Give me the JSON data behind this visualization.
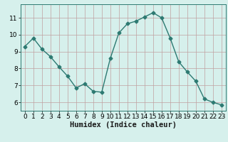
{
  "x": [
    0,
    1,
    2,
    3,
    4,
    5,
    6,
    7,
    8,
    9,
    10,
    11,
    12,
    13,
    14,
    15,
    16,
    17,
    18,
    19,
    20,
    21,
    22,
    23
  ],
  "y": [
    9.3,
    9.8,
    9.15,
    8.7,
    8.1,
    7.55,
    6.85,
    7.1,
    6.65,
    6.6,
    8.6,
    10.1,
    10.65,
    10.8,
    11.05,
    11.3,
    11.0,
    9.8,
    8.4,
    7.8,
    7.25,
    6.2,
    6.0,
    5.85
  ],
  "line_color": "#2d7a72",
  "marker": "D",
  "markersize": 2.5,
  "linewidth": 1.0,
  "bg_color": "#d6f0ec",
  "grid_color": "#c0a0a0",
  "xlabel": "Humidex (Indice chaleur)",
  "xlabel_fontsize": 7.5,
  "tick_fontsize": 6.5,
  "xlim": [
    -0.5,
    23.5
  ],
  "ylim": [
    5.5,
    11.8
  ],
  "yticks": [
    6,
    7,
    8,
    9,
    10,
    11
  ],
  "xticks": [
    0,
    1,
    2,
    3,
    4,
    5,
    6,
    7,
    8,
    9,
    10,
    11,
    12,
    13,
    14,
    15,
    16,
    17,
    18,
    19,
    20,
    21,
    22,
    23
  ]
}
